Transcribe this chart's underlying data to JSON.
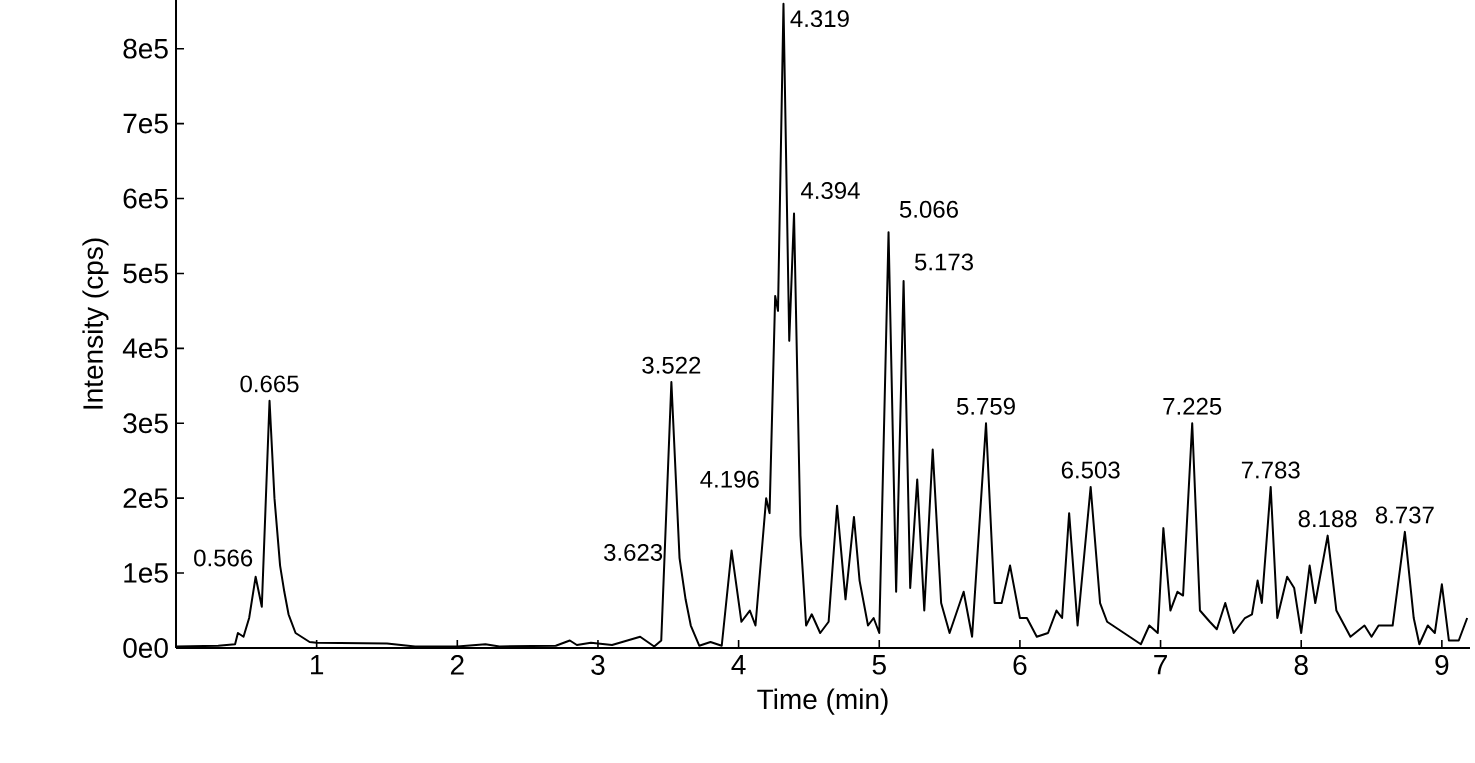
{
  "chart_data": {
    "type": "line",
    "xlabel": "Time (min)",
    "ylabel": "Intensity (cps)",
    "color": "#000000",
    "xlim": [
      0,
      9.2
    ],
    "ylim": [
      0,
      865000
    ],
    "xticks": [
      1,
      2,
      3,
      4,
      5,
      6,
      7,
      8,
      9
    ],
    "yticks": [
      {
        "value": 0,
        "label": "0e0"
      },
      {
        "value": 100000,
        "label": "1e5"
      },
      {
        "value": 200000,
        "label": "2e5"
      },
      {
        "value": 300000,
        "label": "3e5"
      },
      {
        "value": 400000,
        "label": "4e5"
      },
      {
        "value": 500000,
        "label": "5e5"
      },
      {
        "value": 600000,
        "label": "6e5"
      },
      {
        "value": 700000,
        "label": "7e5"
      },
      {
        "value": 800000,
        "label": "8e5"
      }
    ],
    "x": [
      0.0,
      0.3,
      0.42,
      0.44,
      0.48,
      0.52,
      0.566,
      0.61,
      0.665,
      0.7,
      0.74,
      0.77,
      0.8,
      0.85,
      0.95,
      1.0,
      1.5,
      1.7,
      2.0,
      2.2,
      2.3,
      2.7,
      2.8,
      2.85,
      2.95,
      3.1,
      3.3,
      3.4,
      3.45,
      3.522,
      3.58,
      3.623,
      3.66,
      3.72,
      3.8,
      3.88,
      3.95,
      4.02,
      4.08,
      4.12,
      4.196,
      4.22,
      4.26,
      4.28,
      4.319,
      4.36,
      4.394,
      4.44,
      4.48,
      4.52,
      4.58,
      4.64,
      4.7,
      4.76,
      4.82,
      4.86,
      4.92,
      4.96,
      5.0,
      5.066,
      5.12,
      5.173,
      5.22,
      5.27,
      5.32,
      5.38,
      5.44,
      5.5,
      5.6,
      5.66,
      5.759,
      5.82,
      5.87,
      5.93,
      6.0,
      6.05,
      6.12,
      6.2,
      6.26,
      6.3,
      6.35,
      6.41,
      6.503,
      6.57,
      6.62,
      6.7,
      6.78,
      6.86,
      6.92,
      6.98,
      7.02,
      7.07,
      7.12,
      7.16,
      7.225,
      7.28,
      7.35,
      7.4,
      7.46,
      7.52,
      7.6,
      7.65,
      7.69,
      7.72,
      7.783,
      7.83,
      7.9,
      7.95,
      8.0,
      8.06,
      8.1,
      8.188,
      8.25,
      8.35,
      8.45,
      8.5,
      8.55,
      8.65,
      8.737,
      8.8,
      8.84,
      8.9,
      8.95,
      9.0,
      9.05,
      9.12,
      9.18
    ],
    "values": [
      2000,
      3000,
      5000,
      20000,
      15000,
      40000,
      95000,
      55000,
      330000,
      200000,
      110000,
      75000,
      45000,
      20000,
      8000,
      7000,
      6000,
      2000,
      2000,
      5000,
      2000,
      3000,
      10000,
      4000,
      7000,
      4000,
      15000,
      2000,
      10000,
      355000,
      120000,
      65000,
      30000,
      3000,
      8000,
      3000,
      130000,
      35000,
      50000,
      30000,
      200000,
      180000,
      470000,
      450000,
      860000,
      410000,
      580000,
      150000,
      30000,
      45000,
      20000,
      35000,
      190000,
      65000,
      175000,
      90000,
      30000,
      40000,
      20000,
      555000,
      75000,
      490000,
      80000,
      225000,
      50000,
      265000,
      60000,
      20000,
      75000,
      15000,
      300000,
      60000,
      60000,
      110000,
      40000,
      40000,
      15000,
      20000,
      50000,
      40000,
      180000,
      30000,
      215000,
      60000,
      35000,
      25000,
      15000,
      5000,
      30000,
      20000,
      160000,
      50000,
      75000,
      70000,
      300000,
      50000,
      35000,
      25000,
      60000,
      20000,
      40000,
      45000,
      90000,
      60000,
      215000,
      40000,
      95000,
      80000,
      20000,
      110000,
      60000,
      150000,
      50000,
      15000,
      30000,
      15000,
      30000,
      30000,
      155000,
      40000,
      5000,
      30000,
      20000,
      85000,
      10000,
      10000,
      40000
    ],
    "annotations": [
      {
        "text": "0.566",
        "x": 0.566,
        "y": 95000
      },
      {
        "text": "0.665",
        "x": 0.665,
        "y": 330000
      },
      {
        "text": "3.522",
        "x": 3.522,
        "y": 355000
      },
      {
        "text": "3.623",
        "x": 3.623,
        "y": 65000
      },
      {
        "text": "4.196",
        "x": 4.196,
        "y": 200000
      },
      {
        "text": "4.319",
        "x": 4.319,
        "y": 860000
      },
      {
        "text": "4.394",
        "x": 4.394,
        "y": 580000
      },
      {
        "text": "5.066",
        "x": 5.066,
        "y": 555000
      },
      {
        "text": "5.173",
        "x": 5.173,
        "y": 490000
      },
      {
        "text": "5.759",
        "x": 5.759,
        "y": 300000
      },
      {
        "text": "6.503",
        "x": 6.503,
        "y": 215000
      },
      {
        "text": "7.225",
        "x": 7.225,
        "y": 300000
      },
      {
        "text": "7.783",
        "x": 7.783,
        "y": 215000
      },
      {
        "text": "8.188",
        "x": 8.188,
        "y": 150000
      },
      {
        "text": "8.737",
        "x": 8.737,
        "y": 155000
      }
    ]
  }
}
